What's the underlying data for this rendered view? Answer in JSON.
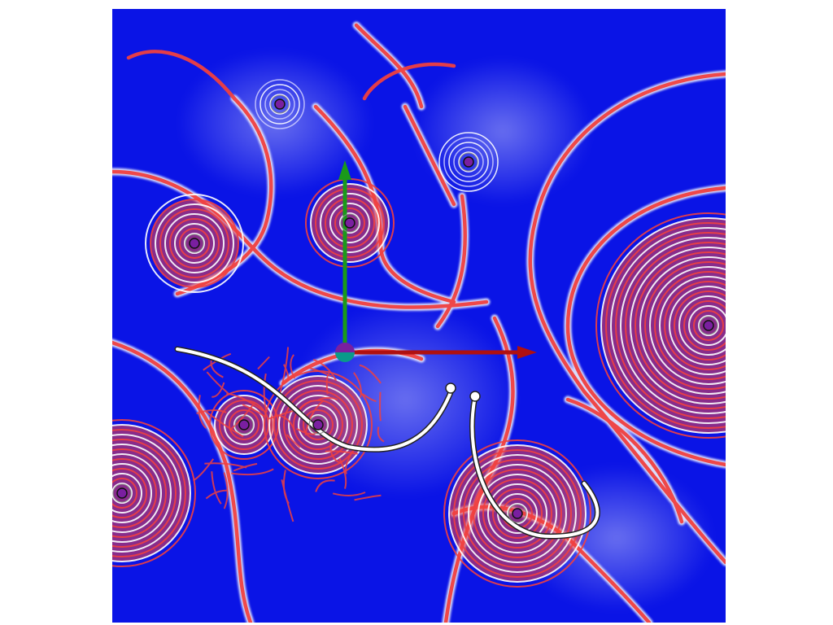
{
  "colors": {
    "background": "#0a14e6",
    "field_high": "#f04040",
    "field_contour": "#ffffff",
    "source_fill": "#7a1fa0",
    "axis_x": "#b01010",
    "axis_y": "#1a9a1a",
    "origin_a": "#7a1fa0",
    "origin_b": "#0a9a8a",
    "curve": "#ffffff",
    "curve_outline": "#222222"
  },
  "icons": {
    "origin": "origin-gizmo-icon",
    "source": "point-source-icon",
    "handle": "curve-handle-icon"
  }
}
